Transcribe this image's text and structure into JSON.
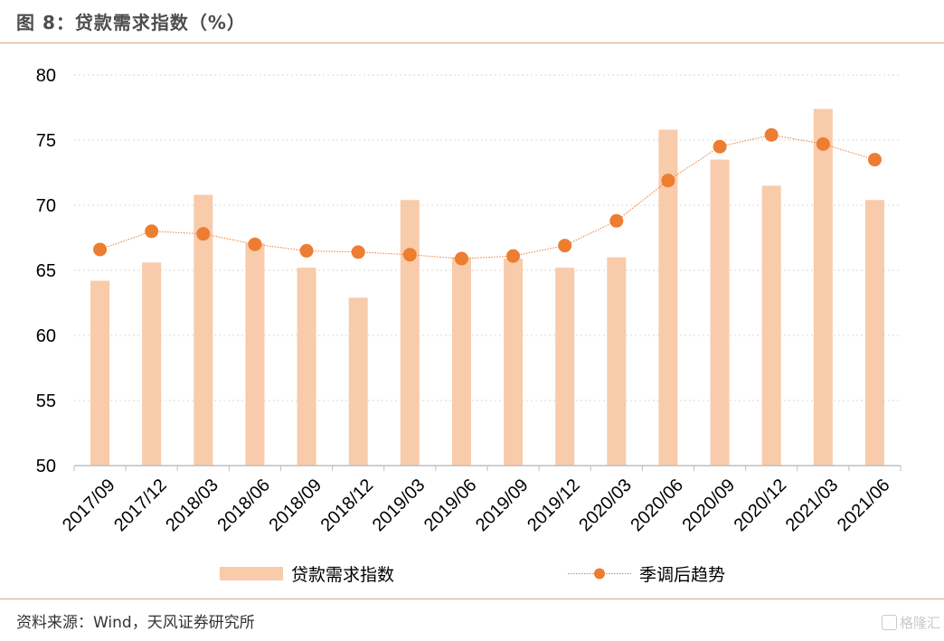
{
  "header": {
    "title": "图 8：贷款需求指数（%）"
  },
  "footer": {
    "source": "资料来源：Wind，天风证券研究所",
    "watermark": "格隆汇"
  },
  "colors": {
    "bar": "#f8cbaa",
    "line": "#ed7d31",
    "rule": "#e3a97a",
    "grid": "#d9d9d9"
  },
  "chart_data": {
    "type": "bar",
    "categories": [
      "2017/09",
      "2017/12",
      "2018/03",
      "2018/06",
      "2018/09",
      "2018/12",
      "2019/03",
      "2019/06",
      "2019/09",
      "2019/12",
      "2020/03",
      "2020/06",
      "2020/09",
      "2020/12",
      "2021/03",
      "2021/06"
    ],
    "series": [
      {
        "name": "贷款需求指数",
        "type": "bar",
        "values": [
          64.2,
          65.6,
          70.8,
          67.1,
          65.2,
          62.9,
          70.4,
          66.0,
          65.9,
          65.2,
          66.0,
          75.8,
          73.5,
          71.5,
          77.4,
          70.4
        ]
      },
      {
        "name": "季调后趋势",
        "type": "line",
        "values": [
          66.6,
          68.0,
          67.8,
          67.0,
          66.5,
          66.4,
          66.2,
          65.9,
          66.1,
          66.9,
          68.8,
          71.9,
          74.5,
          75.4,
          74.7,
          73.5
        ]
      }
    ],
    "y_ticks": [
      "80",
      "75",
      "70",
      "65",
      "60",
      "55",
      "50"
    ],
    "ylim": [
      50,
      80
    ],
    "grid": true,
    "legend": "bottom"
  }
}
